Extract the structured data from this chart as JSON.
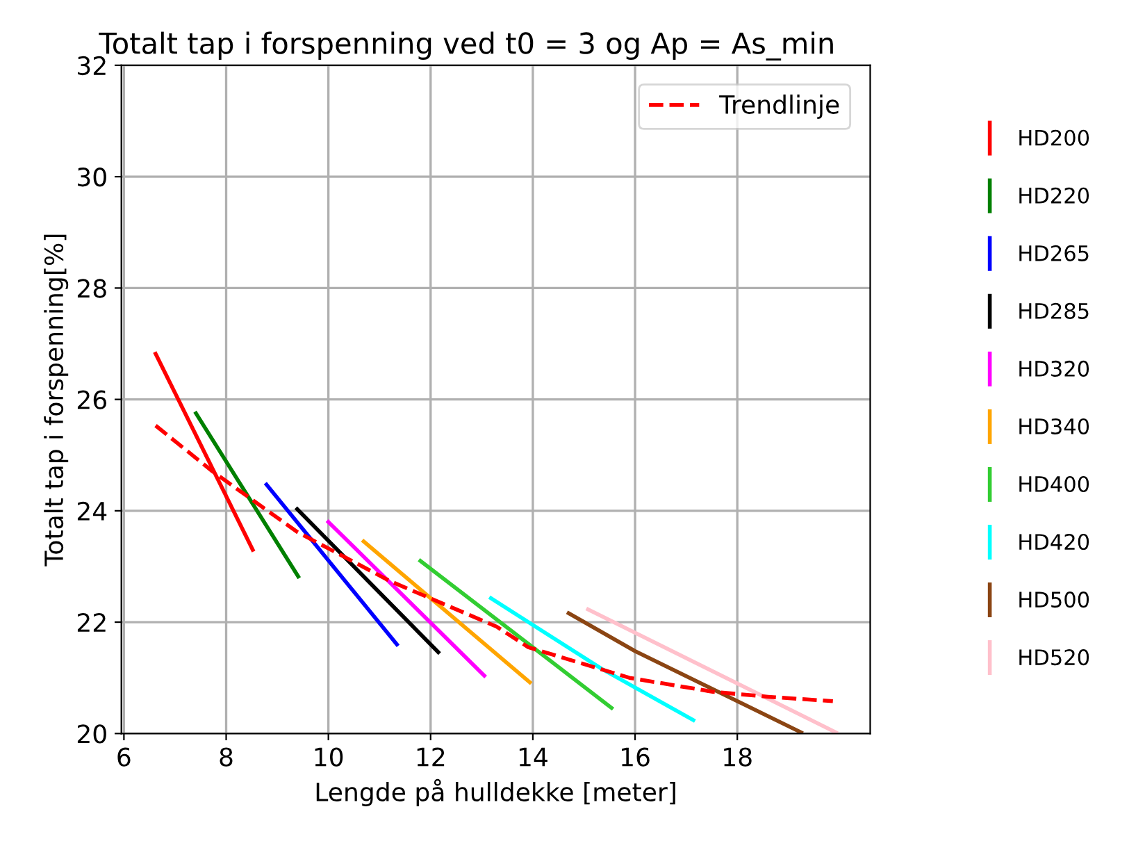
{
  "chart_data": {
    "type": "line",
    "title": "Totalt tap i forspenning ved t0 = 3 og Ap = As_min",
    "xlabel": "Lengde på hulldekke [meter]",
    "ylabel": "Totalt tap i forspenning[%]",
    "xlim": [
      5.95,
      20.6
    ],
    "xticks": [
      6,
      8,
      10,
      12,
      14,
      16,
      18
    ],
    "ylim": [
      20,
      32
    ],
    "yticks": [
      20,
      22,
      24,
      26,
      28,
      30,
      32
    ],
    "grid": true,
    "legend": "right",
    "line_style": "solid",
    "series": [
      {
        "name": "HD200",
        "color": "#ff0000",
        "x": [
          6.62,
          8.52
        ],
        "values": [
          26.82,
          23.3
        ]
      },
      {
        "name": "HD220",
        "color": "#008000",
        "x": [
          7.41,
          9.41
        ],
        "values": [
          25.75,
          22.82
        ]
      },
      {
        "name": "HD265",
        "color": "#0000ff",
        "x": [
          8.79,
          11.34
        ],
        "values": [
          24.47,
          21.6
        ]
      },
      {
        "name": "HD285",
        "color": "#000000",
        "x": [
          9.39,
          12.15
        ],
        "values": [
          24.03,
          21.46
        ]
      },
      {
        "name": "HD320",
        "color": "#ff00ff",
        "x": [
          10.0,
          13.05
        ],
        "values": [
          23.8,
          21.04
        ]
      },
      {
        "name": "HD340",
        "color": "#ffa500",
        "x": [
          10.69,
          13.94
        ],
        "values": [
          23.45,
          20.92
        ]
      },
      {
        "name": "HD400",
        "color": "#32cd32",
        "x": [
          11.8,
          15.54
        ],
        "values": [
          23.1,
          20.46
        ]
      },
      {
        "name": "HD420",
        "color": "#00ffff",
        "x": [
          13.18,
          15.35,
          17.14
        ],
        "values": [
          22.43,
          21.16,
          20.24
        ]
      },
      {
        "name": "HD500",
        "color": "#8b4513",
        "x": [
          14.7,
          16.0,
          19.25
        ],
        "values": [
          22.16,
          21.48,
          20.02
        ]
      },
      {
        "name": "HD520",
        "color": "#ffc0cb",
        "x": [
          15.08,
          19.93
        ],
        "values": [
          22.23,
          20.02
        ]
      },
      {
        "name": "Trendlinje",
        "color": "#ff0000",
        "line_style": "dashed",
        "x": [
          6.62,
          7.73,
          9.39,
          11.2,
          13.29,
          13.91,
          15.89,
          17.52,
          18.6,
          19.87
        ],
        "values": [
          25.53,
          24.71,
          23.62,
          22.74,
          21.92,
          21.55,
          21.0,
          20.75,
          20.66,
          20.58
        ]
      }
    ]
  }
}
